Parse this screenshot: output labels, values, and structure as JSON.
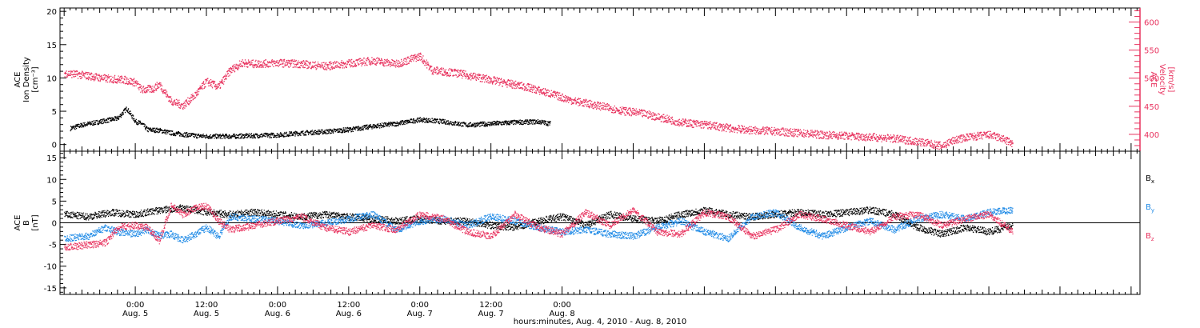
{
  "colors": {
    "black": "#000000",
    "pink": "#e8335f",
    "blue": "#1f8ae6"
  },
  "chart_data": [
    {
      "panel": "top",
      "type": "scatter",
      "left_axis": {
        "label_lines": [
          "ACE",
          "Ion Density",
          "[cm⁻³]"
        ],
        "ylim": [
          -1,
          20.5
        ],
        "ticks": [
          "0",
          "5",
          "10",
          "15",
          "20"
        ]
      },
      "right_axis": {
        "label_lines": [
          "ACE",
          "Velocity",
          "[km/s]"
        ],
        "ylim": [
          370,
          625
        ],
        "ticks": [
          "400",
          "450",
          "500",
          "550",
          "600"
        ]
      },
      "series": [
        {
          "color": "black",
          "axis": "left",
          "points": [
            [
              -11,
              2.5
            ],
            [
              -9,
              3.0
            ],
            [
              -6,
              3.5
            ],
            [
              -3,
              4.0
            ],
            [
              -1.5,
              5.5
            ],
            [
              0,
              3.5
            ],
            [
              1,
              3.2
            ],
            [
              2,
              2.3
            ],
            [
              4,
              2.2
            ],
            [
              6,
              1.8
            ],
            [
              8,
              1.6
            ],
            [
              10,
              1.4
            ],
            [
              12,
              1.3
            ],
            [
              16,
              1.3
            ],
            [
              20,
              1.4
            ],
            [
              24,
              1.5
            ],
            [
              28,
              1.8
            ],
            [
              32,
              2.0
            ],
            [
              36,
              2.3
            ],
            [
              40,
              2.8
            ],
            [
              44,
              3.2
            ],
            [
              48,
              3.8
            ],
            [
              52,
              3.5
            ],
            [
              56,
              3.0
            ],
            [
              60,
              3.2
            ],
            [
              64,
              3.4
            ],
            [
              68,
              3.5
            ],
            [
              70,
              3.2
            ]
          ]
        },
        {
          "color": "pink",
          "axis": "right",
          "points": [
            [
              -12,
              510
            ],
            [
              -8,
              505
            ],
            [
              -5,
              500
            ],
            [
              -2,
              498
            ],
            [
              0,
              493
            ],
            [
              1,
              480
            ],
            [
              3,
              482
            ],
            [
              4,
              490
            ],
            [
              6,
              460
            ],
            [
              8,
              452
            ],
            [
              10,
              470
            ],
            [
              12,
              495
            ],
            [
              14,
              485
            ],
            [
              16,
              515
            ],
            [
              18,
              528
            ],
            [
              20,
              526
            ],
            [
              24,
              528
            ],
            [
              28,
              526
            ],
            [
              32,
              522
            ],
            [
              36,
              527
            ],
            [
              40,
              532
            ],
            [
              44,
              526
            ],
            [
              48,
              540
            ],
            [
              50,
              515
            ],
            [
              54,
              510
            ],
            [
              58,
              502
            ],
            [
              62,
              493
            ],
            [
              66,
              485
            ],
            [
              70,
              473
            ],
            [
              74,
              460
            ],
            [
              78,
              452
            ],
            [
              82,
              443
            ],
            [
              86,
              437
            ],
            [
              88,
              432
            ],
            [
              92,
              422
            ],
            [
              96,
              418
            ],
            [
              100,
              412
            ],
            [
              104,
              408
            ],
            [
              108,
              406
            ],
            [
              112,
              403
            ],
            [
              116,
              400
            ],
            [
              120,
              398
            ],
            [
              124,
              396
            ],
            [
              128,
              393
            ],
            [
              132,
              388
            ],
            [
              136,
              380
            ],
            [
              138,
              390
            ],
            [
              140,
              395
            ],
            [
              144,
              400
            ],
            [
              146,
              394
            ],
            [
              148,
              384
            ]
          ]
        }
      ],
      "gaps": []
    },
    {
      "panel": "bottom",
      "type": "line",
      "left_axis": {
        "label_lines": [
          "ACE",
          "B",
          "[nT]"
        ],
        "ylim": [
          -16.5,
          16.5
        ],
        "ticks": [
          "-15",
          "-10",
          "-5",
          "0",
          "5",
          "10",
          "15"
        ]
      },
      "legend": [
        "Bx",
        "By",
        "Bz"
      ],
      "legend_placement": "right",
      "series": [
        {
          "name": "Bx",
          "color": "black",
          "points": [
            [
              -12,
              2.0
            ],
            [
              -8,
              1.5
            ],
            [
              -4,
              2.5
            ],
            [
              0,
              2.0
            ],
            [
              4,
              3.0
            ],
            [
              8,
              3.5
            ],
            [
              12,
              2.5
            ],
            [
              16,
              2.0
            ],
            [
              20,
              2.5
            ],
            [
              24,
              2.0
            ],
            [
              28,
              1.5
            ],
            [
              32,
              2.0
            ],
            [
              36,
              1.5
            ],
            [
              40,
              1.0
            ],
            [
              44,
              0.5
            ],
            [
              48,
              1.0
            ],
            [
              52,
              0.5
            ],
            [
              56,
              0.5
            ],
            [
              60,
              -0.5
            ],
            [
              64,
              -1.0
            ],
            [
              68,
              0.5
            ],
            [
              72,
              1.5
            ],
            [
              76,
              -0.5
            ],
            [
              80,
              2.0
            ],
            [
              84,
              1.0
            ],
            [
              88,
              0.5
            ],
            [
              92,
              2.0
            ],
            [
              96,
              3.0
            ],
            [
              100,
              2.0
            ],
            [
              104,
              1.5
            ],
            [
              108,
              2.0
            ],
            [
              112,
              2.5
            ],
            [
              116,
              2.0
            ],
            [
              120,
              2.5
            ],
            [
              124,
              3.0
            ],
            [
              128,
              2.0
            ],
            [
              132,
              -1.0
            ],
            [
              136,
              -2.5
            ],
            [
              140,
              -1.0
            ],
            [
              144,
              -2.0
            ],
            [
              148,
              -0.5
            ]
          ]
        },
        {
          "name": "By",
          "color": "blue",
          "points": [
            [
              -12,
              -3.5
            ],
            [
              -8,
              -3.0
            ],
            [
              -5,
              -1.0
            ],
            [
              -3,
              -2.0
            ],
            [
              0,
              -2.5
            ],
            [
              2,
              -1.5
            ],
            [
              4,
              -3.0
            ],
            [
              6,
              -2.5
            ],
            [
              8,
              -4.0
            ],
            [
              10,
              -2.5
            ],
            [
              12,
              -1.0
            ],
            [
              14,
              -3.0
            ],
            [
              16,
              1.5
            ],
            [
              20,
              1.0
            ],
            [
              24,
              0.5
            ],
            [
              28,
              -0.5
            ],
            [
              32,
              0.0
            ],
            [
              36,
              1.0
            ],
            [
              40,
              2.0
            ],
            [
              44,
              -1.5
            ],
            [
              48,
              0.5
            ],
            [
              52,
              1.0
            ],
            [
              56,
              -0.5
            ],
            [
              60,
              1.5
            ],
            [
              64,
              0.5
            ],
            [
              68,
              -1.0
            ],
            [
              72,
              -2.0
            ],
            [
              76,
              -1.5
            ],
            [
              80,
              -2.5
            ],
            [
              84,
              -3.0
            ],
            [
              88,
              -1.0
            ],
            [
              92,
              0.5
            ],
            [
              96,
              -2.0
            ],
            [
              100,
              -3.5
            ],
            [
              104,
              1.5
            ],
            [
              108,
              2.5
            ],
            [
              112,
              -1.0
            ],
            [
              116,
              -3.0
            ],
            [
              120,
              -1.0
            ],
            [
              124,
              0.5
            ],
            [
              128,
              -1.5
            ],
            [
              132,
              1.0
            ],
            [
              136,
              2.0
            ],
            [
              140,
              1.0
            ],
            [
              144,
              2.5
            ],
            [
              148,
              3.0
            ]
          ]
        },
        {
          "name": "Bz",
          "color": "pink",
          "points": [
            [
              -12,
              -5.5
            ],
            [
              -8,
              -5.0
            ],
            [
              -5,
              -4.5
            ],
            [
              -3,
              -1.0
            ],
            [
              0,
              -0.5
            ],
            [
              2,
              -1.0
            ],
            [
              4,
              -4.0
            ],
            [
              6,
              4.0
            ],
            [
              8,
              2.0
            ],
            [
              10,
              3.5
            ],
            [
              12,
              4.0
            ],
            [
              14,
              0.5
            ],
            [
              16,
              -1.5
            ],
            [
              20,
              -0.5
            ],
            [
              24,
              0.5
            ],
            [
              28,
              1.5
            ],
            [
              32,
              -1.0
            ],
            [
              36,
              -2.0
            ],
            [
              40,
              -0.5
            ],
            [
              44,
              -1.5
            ],
            [
              48,
              2.0
            ],
            [
              52,
              1.0
            ],
            [
              56,
              -2.0
            ],
            [
              60,
              -3.0
            ],
            [
              64,
              2.0
            ],
            [
              68,
              -1.0
            ],
            [
              72,
              -2.5
            ],
            [
              76,
              2.5
            ],
            [
              80,
              -0.5
            ],
            [
              84,
              3.0
            ],
            [
              88,
              -2.0
            ],
            [
              92,
              -2.5
            ],
            [
              96,
              2.5
            ],
            [
              100,
              1.5
            ],
            [
              104,
              -3.0
            ],
            [
              108,
              -1.5
            ],
            [
              112,
              2.0
            ],
            [
              116,
              1.0
            ],
            [
              120,
              -0.5
            ],
            [
              124,
              -2.0
            ],
            [
              128,
              1.5
            ],
            [
              132,
              2.0
            ],
            [
              136,
              -0.5
            ],
            [
              140,
              1.0
            ],
            [
              144,
              2.0
            ],
            [
              148,
              -2.0
            ]
          ]
        }
      ]
    }
  ],
  "x_axis": {
    "xlim": [
      -12.7,
      169.5
    ],
    "tick_labels": [
      {
        "hour": 0,
        "time": "0:00",
        "date": "Aug. 5"
      },
      {
        "hour": 12,
        "time": "12:00",
        "date": "Aug. 5"
      },
      {
        "hour": 24,
        "time": "0:00",
        "date": "Aug. 6"
      },
      {
        "hour": 36,
        "time": "12:00",
        "date": "Aug. 6"
      },
      {
        "hour": 48,
        "time": "0:00",
        "date": "Aug. 7"
      },
      {
        "hour": 60,
        "time": "12:00",
        "date": "Aug. 7"
      },
      {
        "hour": 72,
        "time": "0:00",
        "date": "Aug. 8"
      }
    ],
    "label": "hours:minutes, Aug.  4, 2010 - Aug.  8, 2010"
  }
}
